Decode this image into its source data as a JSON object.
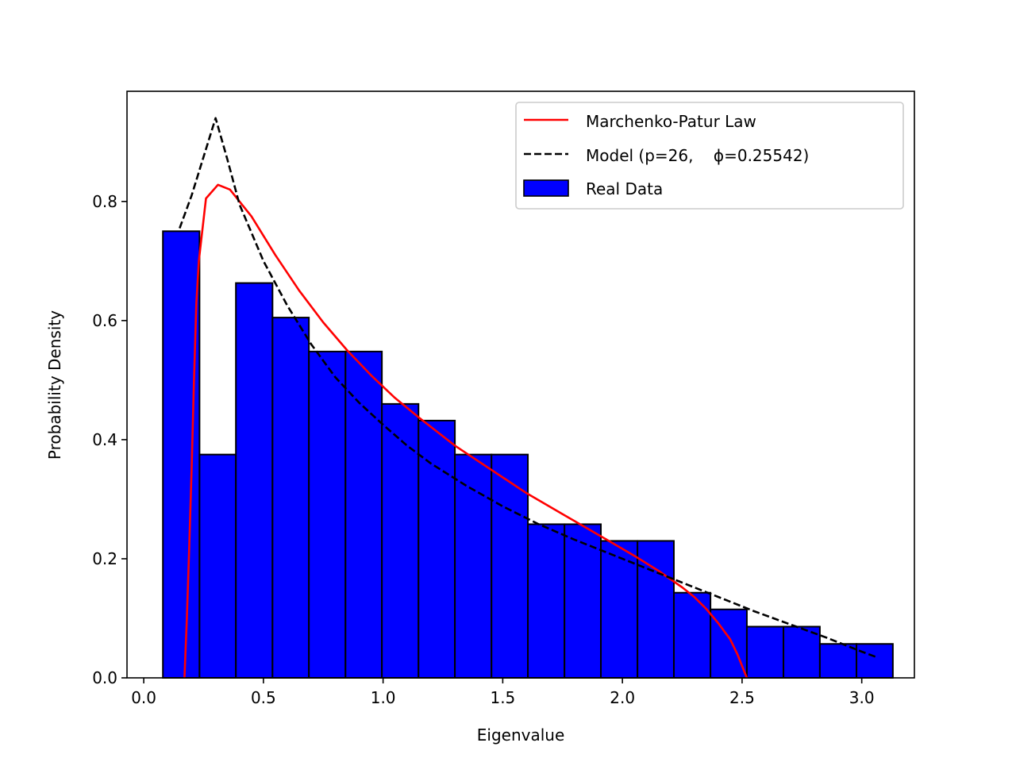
{
  "chart_data": {
    "type": "bar",
    "xlabel": "Eigenvalue",
    "ylabel": "Probability Density",
    "xlim": [
      -0.07,
      3.22
    ],
    "ylim": [
      0.0,
      0.985
    ],
    "x_ticks": [
      0.0,
      0.5,
      1.0,
      1.5,
      2.0,
      2.5,
      3.0
    ],
    "y_ticks": [
      0.0,
      0.2,
      0.4,
      0.6,
      0.8
    ],
    "x_tick_labels": [
      "0.0",
      "0.5",
      "1.0",
      "1.5",
      "2.0",
      "2.5",
      "3.0"
    ],
    "y_tick_labels": [
      "0.0",
      "0.2",
      "0.4",
      "0.6",
      "0.8"
    ],
    "grid": false,
    "legend_position": "top-right",
    "histogram": {
      "name": "Real Data",
      "color": "#0000ff",
      "edge_color": "#000000",
      "bins": [
        {
          "x0": 0.08,
          "x1": 0.233,
          "value": 0.75
        },
        {
          "x0": 0.233,
          "x1": 0.385,
          "value": 0.375
        },
        {
          "x0": 0.385,
          "x1": 0.538,
          "value": 0.663
        },
        {
          "x0": 0.538,
          "x1": 0.69,
          "value": 0.605
        },
        {
          "x0": 0.69,
          "x1": 0.843,
          "value": 0.548
        },
        {
          "x0": 0.843,
          "x1": 0.995,
          "value": 0.548
        },
        {
          "x0": 0.995,
          "x1": 1.148,
          "value": 0.46
        },
        {
          "x0": 1.148,
          "x1": 1.3,
          "value": 0.432
        },
        {
          "x0": 1.3,
          "x1": 1.453,
          "value": 0.375
        },
        {
          "x0": 1.453,
          "x1": 1.605,
          "value": 0.375
        },
        {
          "x0": 1.605,
          "x1": 1.758,
          "value": 0.258
        },
        {
          "x0": 1.758,
          "x1": 1.91,
          "value": 0.258
        },
        {
          "x0": 1.91,
          "x1": 2.063,
          "value": 0.23
        },
        {
          "x0": 2.063,
          "x1": 2.215,
          "value": 0.23
        },
        {
          "x0": 2.215,
          "x1": 2.368,
          "value": 0.143
        },
        {
          "x0": 2.368,
          "x1": 2.52,
          "value": 0.115
        },
        {
          "x0": 2.52,
          "x1": 2.673,
          "value": 0.086
        },
        {
          "x0": 2.673,
          "x1": 2.825,
          "value": 0.086
        },
        {
          "x0": 2.825,
          "x1": 2.978,
          "value": 0.057
        },
        {
          "x0": 2.978,
          "x1": 3.13,
          "value": 0.057
        }
      ]
    },
    "series": [
      {
        "name": "Marchenko-Patur Law",
        "color": "#ff0000",
        "style": "solid",
        "x": [
          0.17,
          0.18,
          0.19,
          0.2,
          0.21,
          0.22,
          0.23,
          0.26,
          0.31,
          0.36,
          0.45,
          0.55,
          0.65,
          0.75,
          0.85,
          0.95,
          1.05,
          1.15,
          1.3,
          1.45,
          1.6,
          1.75,
          1.9,
          2.05,
          2.15,
          2.25,
          2.3,
          2.35,
          2.4,
          2.45,
          2.48,
          2.5,
          2.52
        ],
        "y": [
          0.0,
          0.1,
          0.22,
          0.35,
          0.5,
          0.63,
          0.7,
          0.805,
          0.828,
          0.82,
          0.775,
          0.71,
          0.65,
          0.597,
          0.55,
          0.508,
          0.47,
          0.437,
          0.39,
          0.35,
          0.31,
          0.275,
          0.24,
          0.205,
          0.18,
          0.152,
          0.136,
          0.116,
          0.092,
          0.065,
          0.04,
          0.02,
          0.0
        ]
      },
      {
        "name": "Model (p=26,    ϕ=0.25542)",
        "color": "#000000",
        "style": "dashed",
        "x": [
          0.15,
          0.2,
          0.25,
          0.3,
          0.35,
          0.4,
          0.5,
          0.6,
          0.7,
          0.8,
          0.9,
          1.0,
          1.1,
          1.2,
          1.35,
          1.5,
          1.65,
          1.8,
          1.95,
          2.1,
          2.25,
          2.4,
          2.55,
          2.7,
          2.85,
          3.0,
          3.06
        ],
        "y": [
          0.755,
          0.81,
          0.875,
          0.94,
          0.87,
          0.795,
          0.7,
          0.625,
          0.56,
          0.505,
          0.462,
          0.425,
          0.39,
          0.36,
          0.322,
          0.288,
          0.258,
          0.232,
          0.208,
          0.184,
          0.16,
          0.136,
          0.112,
          0.09,
          0.068,
          0.044,
          0.035
        ]
      }
    ]
  }
}
